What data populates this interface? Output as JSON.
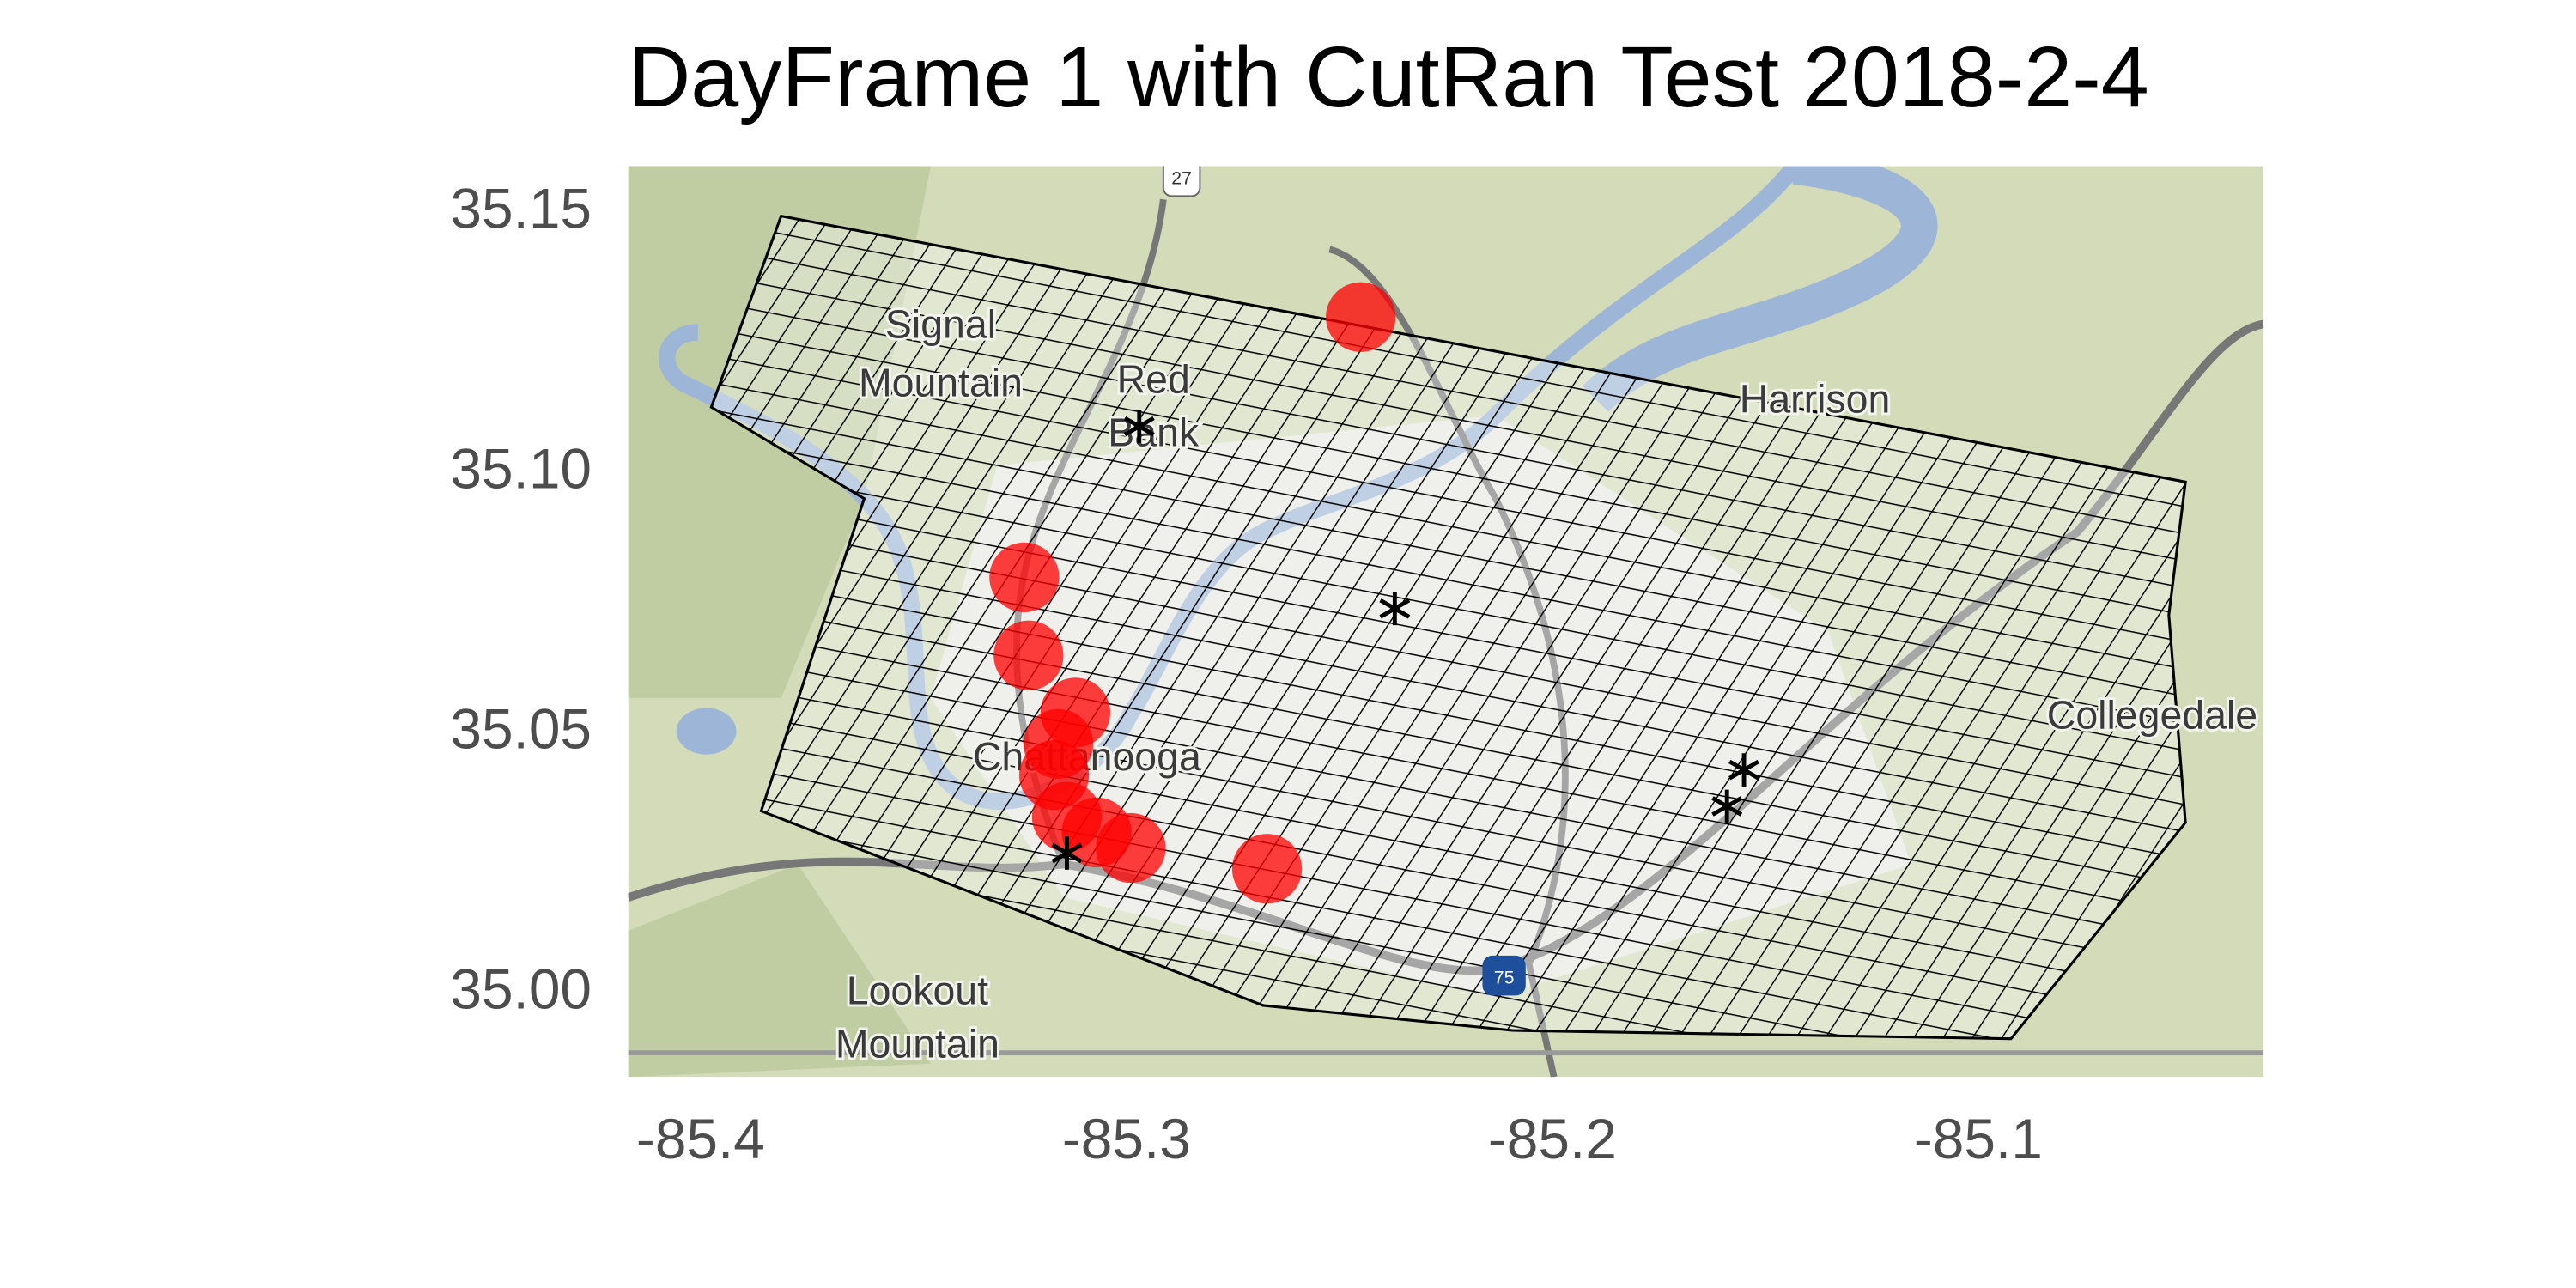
{
  "chart_data": {
    "type": "scatter",
    "title": "DayFrame 1 with CutRan Test 2018-2-4",
    "xlim": [
      -85.417,
      -85.033
    ],
    "ylim": [
      34.983,
      35.158
    ],
    "xticks": [
      -85.4,
      -85.3,
      -85.2,
      -85.1
    ],
    "yticks": [
      {
        "value": 35,
        "label": "35.00"
      },
      35.05,
      {
        "value": 35.1,
        "label": "35.10"
      },
      35.15
    ],
    "points": {
      "color": "#ff0000",
      "x": [
        -85.245,
        -85.324,
        -85.323,
        -85.312,
        -85.316,
        -85.317,
        -85.314,
        -85.307,
        -85.299,
        -85.267
      ],
      "y": [
        35.129,
        35.079,
        35.064,
        35.053,
        35.047,
        35.041,
        35.033,
        35.03,
        35.027,
        35.023
      ]
    },
    "stations": {
      "color": "#000000",
      "x": [
        -85.297,
        -85.237,
        -85.155,
        -85.159,
        -85.314
      ],
      "y": [
        35.108,
        35.073,
        35.042,
        35.035,
        35.026
      ]
    },
    "map_labels": [
      "Signal",
      "Mountain",
      "Red",
      "Bank",
      "Chattanooga",
      "Harrison",
      "Collegedale",
      "Lookout",
      "Mountain",
      "27",
      "75"
    ]
  }
}
